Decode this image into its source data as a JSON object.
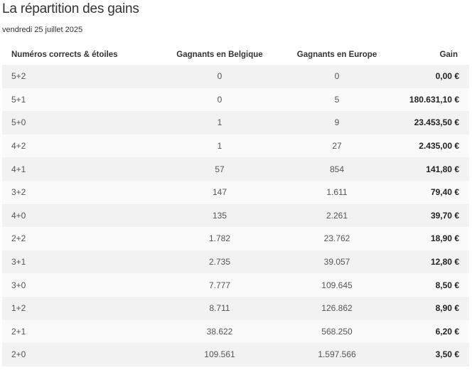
{
  "header": {
    "title": "La répartition des gains",
    "date": "vendredi 25 juillet 2025"
  },
  "table": {
    "columns": [
      "Numéros corrects & étoiles",
      "Gagnants en Belgique",
      "Gagnants en Europe",
      "Gain"
    ],
    "rows": [
      {
        "combo": "5+2",
        "belgium": "0",
        "europe": "0",
        "gain": "0,00 €"
      },
      {
        "combo": "5+1",
        "belgium": "0",
        "europe": "5",
        "gain": "180.631,10 €"
      },
      {
        "combo": "5+0",
        "belgium": "1",
        "europe": "9",
        "gain": "23.453,50 €"
      },
      {
        "combo": "4+2",
        "belgium": "1",
        "europe": "27",
        "gain": "2.435,00 €"
      },
      {
        "combo": "4+1",
        "belgium": "57",
        "europe": "854",
        "gain": "141,80 €"
      },
      {
        "combo": "3+2",
        "belgium": "147",
        "europe": "1.611",
        "gain": "79,40 €"
      },
      {
        "combo": "4+0",
        "belgium": "135",
        "europe": "2.261",
        "gain": "39,70 €"
      },
      {
        "combo": "2+2",
        "belgium": "1.782",
        "europe": "23.762",
        "gain": "18,90 €"
      },
      {
        "combo": "3+1",
        "belgium": "2.735",
        "europe": "39.057",
        "gain": "12,80 €"
      },
      {
        "combo": "3+0",
        "belgium": "7.777",
        "europe": "109.645",
        "gain": "8,50 €"
      },
      {
        "combo": "1+2",
        "belgium": "8.711",
        "europe": "126.862",
        "gain": "8,90 €"
      },
      {
        "combo": "2+1",
        "belgium": "38.622",
        "europe": "568.250",
        "gain": "6,20 €"
      },
      {
        "combo": "2+0",
        "belgium": "109.561",
        "europe": "1.597.566",
        "gain": "3,50 €"
      }
    ]
  },
  "colors": {
    "row_odd": "#f2f2f2",
    "row_even": "#fafafa",
    "text": "#333333"
  }
}
